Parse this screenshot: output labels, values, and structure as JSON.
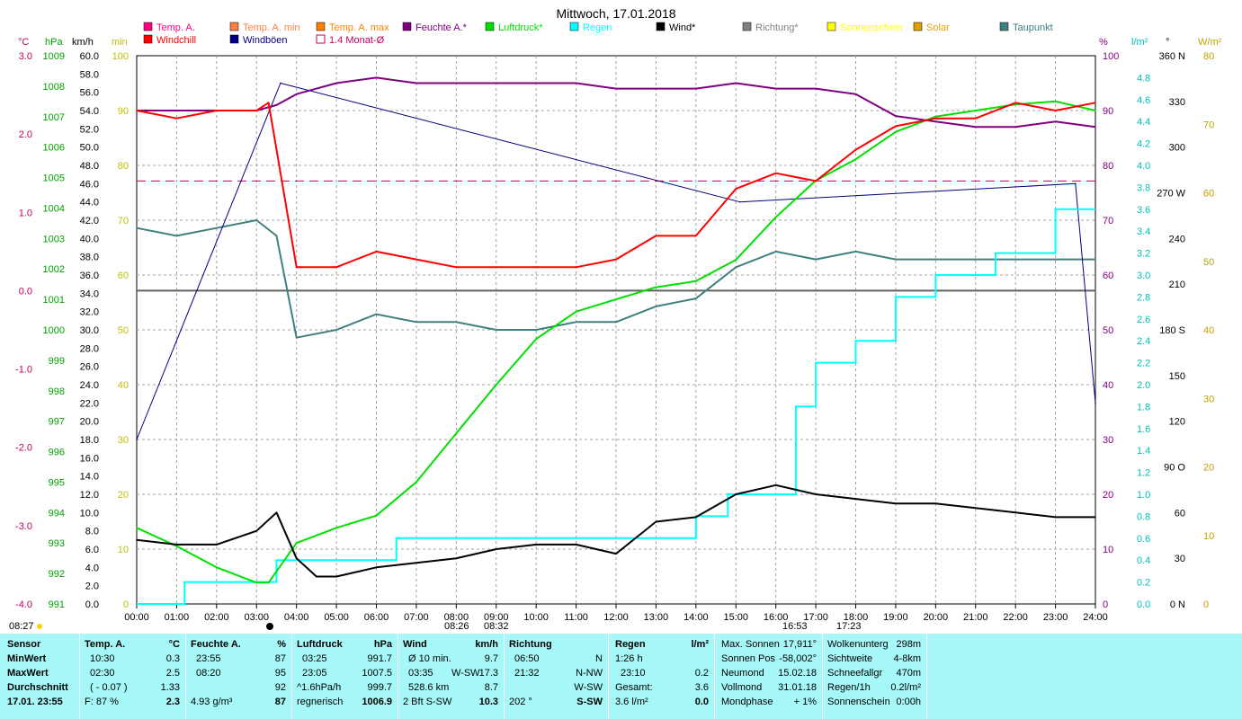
{
  "chart_data": {
    "type": "line",
    "title": "Mittwoch, 17.01.2018",
    "x_ticks": [
      "00:00",
      "01:00",
      "02:00",
      "03:00",
      "04:00",
      "05:00",
      "06:00",
      "07:00",
      "08:00",
      "09:00",
      "10:00",
      "11:00",
      "12:00",
      "13:00",
      "14:00",
      "15:00",
      "16:00",
      "17:00",
      "18:00",
      "19:00",
      "20:00",
      "21:00",
      "22:00",
      "23:00",
      "24:00"
    ],
    "events": {
      "sunrise": "08:27",
      "sunrise_label": "08:26",
      "transit": "08:32",
      "sunset": "16:53",
      "moon": "17:23"
    },
    "axis_units": {
      "temp": "°C",
      "pressure": "hPa",
      "wind": "km/h",
      "sun": "min",
      "humidity": "%",
      "rain": "l/m²",
      "dir": "°",
      "solar": "W/m²"
    },
    "temp_ticks": [
      "3.0",
      "2.0",
      "1.0",
      "0.0",
      "-1.0",
      "-2.0",
      "-3.0",
      "-4.0"
    ],
    "pressure_ticks": [
      "1009",
      "1008",
      "1007",
      "1006",
      "1005",
      "1004",
      "1003",
      "1002",
      "1001",
      "1000",
      "999",
      "998",
      "997",
      "996",
      "995",
      "994",
      "993",
      "992",
      "991"
    ],
    "wind_ticks": [
      "60.0",
      "58.0",
      "56.0",
      "54.0",
      "52.0",
      "50.0",
      "48.0",
      "46.0",
      "44.0",
      "42.0",
      "40.0",
      "38.0",
      "36.0",
      "34.0",
      "32.0",
      "30.0",
      "28.0",
      "26.0",
      "24.0",
      "22.0",
      "20.0",
      "18.0",
      "16.0",
      "14.0",
      "12.0",
      "10.0",
      "8.0",
      "6.0",
      "4.0",
      "2.0",
      "0.0"
    ],
    "sun_ticks": [
      "100",
      "90",
      "80",
      "70",
      "60",
      "50",
      "40",
      "30",
      "20",
      "10",
      "0"
    ],
    "hum_ticks": [
      "100",
      "90",
      "80",
      "70",
      "60",
      "50",
      "40",
      "30",
      "20",
      "10",
      "0"
    ],
    "rain_ticks": [
      "4.8",
      "4.6",
      "4.4",
      "4.2",
      "4.0",
      "3.8",
      "3.6",
      "3.4",
      "3.2",
      "3.0",
      "2.8",
      "2.6",
      "2.4",
      "2.2",
      "2.0",
      "1.8",
      "1.6",
      "1.4",
      "1.2",
      "1.0",
      "0.8",
      "0.6",
      "0.4",
      "0.2",
      "0.0"
    ],
    "dir_ticks": [
      "360 N",
      "330",
      "300",
      "270 W",
      "240",
      "210",
      "180 S",
      "150",
      "120",
      "90 O",
      "60",
      "30",
      "0 N"
    ],
    "solar_ticks": [
      "80",
      "70",
      "60",
      "50",
      "40",
      "30",
      "20",
      "10",
      "0"
    ],
    "legend": [
      {
        "name": "Temp. A.",
        "color": "#ff0080",
        "shape": "box"
      },
      {
        "name": "Temp. A. min",
        "color": "#ff8040",
        "shape": "box"
      },
      {
        "name": "Temp. A. max",
        "color": "#ff8000",
        "shape": "box"
      },
      {
        "name": "Feuchte A.*",
        "color": "#800080",
        "shape": "box"
      },
      {
        "name": "Luftdruck*",
        "color": "#00e000",
        "shape": "box"
      },
      {
        "name": "Regen",
        "color": "#00ffff",
        "shape": "box"
      },
      {
        "name": "Wind*",
        "color": "#000000",
        "shape": "box"
      },
      {
        "name": "Richtung*",
        "color": "#808080",
        "shape": "box"
      },
      {
        "name": "Sonnenschein",
        "color": "#ffff00",
        "shape": "box"
      },
      {
        "name": "Solar",
        "color": "#e0a000",
        "shape": "box"
      },
      {
        "name": "Taupunkt",
        "color": "#408080",
        "shape": "box"
      },
      {
        "name": "Windchill",
        "color": "#ff0000",
        "shape": "box"
      },
      {
        "name": "Windböen",
        "color": "#000080",
        "shape": "box"
      },
      {
        "name": "1.4 Monat-Ø",
        "color": "#c00060",
        "shape": "outline"
      }
    ],
    "series": {
      "humidity": {
        "name": "Feuchte A.",
        "unit": "%",
        "x": [
          0,
          1,
          2,
          3,
          3.5,
          4,
          5,
          6,
          6.5,
          7,
          8,
          9,
          10,
          11,
          12,
          13,
          14,
          15,
          16,
          17,
          18,
          19,
          20,
          21,
          22,
          23,
          24
        ],
        "values": [
          90,
          90,
          90,
          90,
          91,
          93,
          95,
          96,
          95.5,
          95,
          95,
          95,
          95,
          95,
          94,
          94,
          94,
          95,
          94,
          94,
          93,
          89,
          88,
          87,
          87,
          88,
          87
        ]
      },
      "pressure": {
        "name": "Luftdruck",
        "unit": "hPa",
        "x": [
          0,
          1,
          2,
          3,
          3.3,
          4,
          5,
          6,
          7,
          8,
          9,
          10,
          11,
          12,
          13,
          14,
          15,
          16,
          17,
          18,
          19,
          20,
          21,
          22,
          23,
          24
        ],
        "values": [
          993.5,
          992.9,
          992.2,
          991.7,
          991.7,
          993,
          993.5,
          993.9,
          995,
          996.6,
          998.2,
          999.7,
          1000.6,
          1001,
          1001.4,
          1001.6,
          1002.3,
          1003.7,
          1004.9,
          1005.6,
          1006.5,
          1007,
          1007.2,
          1007.4,
          1007.5,
          1007.2
        ]
      },
      "rain": {
        "name": "Regen",
        "unit": "l/m²",
        "x": [
          0,
          1.2,
          3.5,
          6.5,
          14,
          14.8,
          16.5,
          17,
          18,
          19,
          20,
          21.5,
          23,
          24
        ],
        "values": [
          0,
          0.2,
          0.4,
          0.6,
          0.8,
          1.0,
          1.8,
          2.2,
          2.4,
          2.8,
          3.0,
          3.2,
          3.6,
          3.6
        ]
      },
      "wind": {
        "name": "Wind",
        "unit": "km/h",
        "x": [
          0,
          1,
          2,
          3,
          3.5,
          4,
          4.5,
          5,
          6,
          7,
          8,
          9,
          10,
          11,
          12,
          13,
          14,
          15,
          16,
          17,
          18,
          19,
          20,
          21,
          22,
          23,
          24
        ],
        "values": [
          7,
          6.5,
          6.5,
          8,
          10,
          5,
          3,
          3,
          4,
          4.5,
          5,
          6,
          6.5,
          6.5,
          5.5,
          9,
          9.5,
          12,
          13,
          12,
          11.5,
          11,
          11,
          10.5,
          10,
          9.5,
          9.5
        ]
      },
      "temp": {
        "name": "Temp. A.",
        "unit": "°C",
        "x": [
          0,
          1,
          2,
          3,
          3.3,
          4,
          5,
          6,
          7,
          8,
          9,
          10,
          11,
          12,
          13,
          14,
          15,
          16,
          17,
          18,
          19,
          20,
          21,
          22,
          23,
          24
        ],
        "values": [
          2.3,
          2.2,
          2.3,
          2.3,
          2.4,
          0.3,
          0.3,
          0.5,
          0.4,
          0.3,
          0.3,
          0.3,
          0.3,
          0.4,
          0.7,
          0.7,
          1.3,
          1.5,
          1.4,
          1.8,
          2.1,
          2.2,
          2.2,
          2.4,
          2.3,
          2.4
        ]
      },
      "dewpoint": {
        "name": "Taupunkt",
        "unit": "°C",
        "x": [
          0,
          1,
          2,
          3,
          3.5,
          4,
          5,
          6,
          7,
          8,
          9,
          10,
          11,
          12,
          13,
          14,
          15,
          16,
          17,
          18,
          19,
          20,
          21,
          22,
          23,
          24
        ],
        "values": [
          0.8,
          0.7,
          0.8,
          0.9,
          0.7,
          -0.6,
          -0.5,
          -0.3,
          -0.4,
          -0.4,
          -0.5,
          -0.5,
          -0.4,
          -0.4,
          -0.2,
          -0.1,
          0.3,
          0.5,
          0.4,
          0.5,
          0.4,
          0.4,
          0.4,
          0.4,
          0.4,
          0.4
        ]
      },
      "gust_peaks": {
        "name": "Windböen",
        "unit": "km/h",
        "x": [
          0,
          3.6,
          15.1,
          23.5,
          24
        ],
        "values": [
          18,
          57,
          44,
          46,
          22
        ]
      }
    }
  },
  "header": {
    "left_time": "08:27",
    "mid_time_a": "08:26",
    "mid_time_b": "08:32",
    "right_time_a": "16:53",
    "right_time_b": "17:23"
  },
  "footer": {
    "sensor": {
      "title": "Sensor",
      "rows": [
        "MinWert",
        "MaxWert",
        "Durchschnitt",
        "17.01. 23:55"
      ]
    },
    "temp": {
      "title": "Temp. A.",
      "unit": "°C",
      "rows": [
        [
          "10:30",
          "0.3"
        ],
        [
          "02:30",
          "2.5"
        ],
        [
          "( - 0.07 )",
          "1.33"
        ],
        [
          "F: 87 %",
          "2.3"
        ]
      ]
    },
    "hum": {
      "title": "Feuchte A.",
      "unit": "%",
      "rows": [
        [
          "23:55",
          "87"
        ],
        [
          "08:20",
          "95"
        ],
        [
          "",
          "92"
        ],
        [
          "4.93 g/m³",
          "87"
        ]
      ]
    },
    "press": {
      "title": "Luftdruck",
      "unit": "hPa",
      "rows": [
        [
          "03:25",
          "991.7"
        ],
        [
          "23:05",
          "1007.5"
        ],
        [
          "^1.6hPa/h",
          "999.7"
        ],
        [
          "regnerisch",
          "1006.9"
        ]
      ]
    },
    "wind": {
      "title": "Wind",
      "unit": "km/h",
      "rows": [
        [
          "Ø 10 min.",
          "",
          "9.7"
        ],
        [
          "03:35",
          "W-SW",
          "17.3"
        ],
        [
          "528.6 km",
          "",
          "8.7"
        ],
        [
          "2 Bft S-SW",
          "",
          "10.3"
        ]
      ]
    },
    "dir": {
      "title": "Richtung",
      "rows": [
        [
          "06:50",
          "N"
        ],
        [
          "21:32",
          "N-NW"
        ],
        [
          "",
          "W-SW"
        ],
        [
          "202 °",
          "S-SW"
        ]
      ]
    },
    "rain": {
      "title": "Regen",
      "unit": "l/m²",
      "rows": [
        [
          "1:26 h",
          ""
        ],
        [
          "23:10",
          "0.2"
        ],
        [
          "Gesamt:",
          "3.6"
        ],
        [
          "3.6 l/m²",
          "0.0"
        ]
      ]
    },
    "astro": {
      "rows": [
        [
          "Max. Sonnen",
          "17,911°"
        ],
        [
          "Sonnen Pos",
          "-58,002°"
        ],
        [
          "Neumond",
          "15.02.18"
        ],
        [
          "Vollmond",
          "31.01.18"
        ],
        [
          "Mondphase",
          "+ 1%"
        ]
      ]
    },
    "misc": {
      "rows": [
        [
          "Wolkenunterg",
          "298m"
        ],
        [
          "Sichtweite",
          "4-8km"
        ],
        [
          "Schneefallgr",
          "470m"
        ],
        [
          "Regen/1h",
          "0.2l/m²"
        ],
        [
          "Sonnenschein",
          "0:00h"
        ]
      ]
    }
  }
}
